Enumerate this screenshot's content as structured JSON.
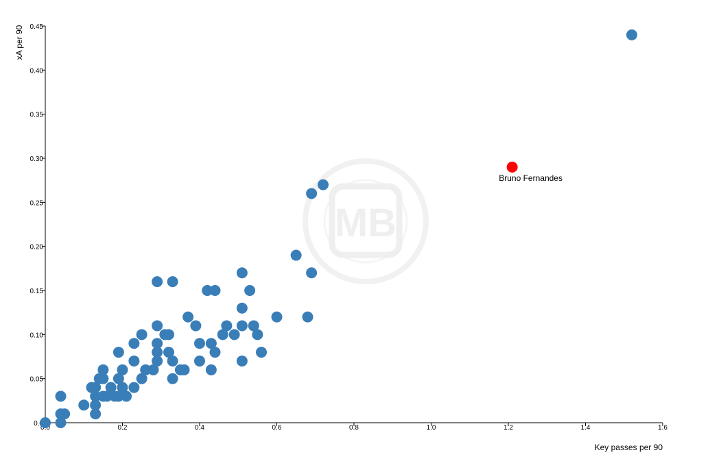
{
  "chart_data": {
    "type": "scatter",
    "xlabel": "Key passes per 90",
    "ylabel": "xA per 90",
    "xlim": [
      0,
      1.6
    ],
    "ylim": [
      0,
      0.45
    ],
    "x_ticks": [
      "0.0",
      "0.2",
      "0.4",
      "0.6",
      "0.8",
      "1.0",
      "1.2",
      "1.4",
      "1.6"
    ],
    "y_ticks": [
      "0.0",
      "0.05",
      "0.10",
      "0.15",
      "0.20",
      "0.25",
      "0.30",
      "0.35",
      "0.40",
      "0.45"
    ],
    "grid": false,
    "watermark": "MB",
    "colors": {
      "points": "#3a7eb8",
      "highlight": "#ff0000",
      "watermark": "#eeeeee"
    },
    "highlight": {
      "label": "Bruno Fernandes",
      "x": 1.21,
      "y": 0.29
    },
    "points": [
      [
        0.0,
        0.0
      ],
      [
        0.04,
        0.0
      ],
      [
        0.04,
        0.01
      ],
      [
        0.05,
        0.01
      ],
      [
        0.04,
        0.03
      ],
      [
        0.1,
        0.02
      ],
      [
        0.12,
        0.04
      ],
      [
        0.13,
        0.01
      ],
      [
        0.13,
        0.02
      ],
      [
        0.13,
        0.03
      ],
      [
        0.13,
        0.04
      ],
      [
        0.14,
        0.05
      ],
      [
        0.15,
        0.03
      ],
      [
        0.15,
        0.05
      ],
      [
        0.15,
        0.06
      ],
      [
        0.16,
        0.03
      ],
      [
        0.17,
        0.04
      ],
      [
        0.18,
        0.03
      ],
      [
        0.19,
        0.03
      ],
      [
        0.19,
        0.05
      ],
      [
        0.19,
        0.08
      ],
      [
        0.2,
        0.04
      ],
      [
        0.2,
        0.06
      ],
      [
        0.21,
        0.03
      ],
      [
        0.23,
        0.04
      ],
      [
        0.23,
        0.07
      ],
      [
        0.23,
        0.09
      ],
      [
        0.25,
        0.05
      ],
      [
        0.25,
        0.1
      ],
      [
        0.26,
        0.06
      ],
      [
        0.28,
        0.06
      ],
      [
        0.29,
        0.07
      ],
      [
        0.29,
        0.08
      ],
      [
        0.29,
        0.09
      ],
      [
        0.29,
        0.11
      ],
      [
        0.29,
        0.16
      ],
      [
        0.31,
        0.1
      ],
      [
        0.32,
        0.08
      ],
      [
        0.32,
        0.1
      ],
      [
        0.33,
        0.05
      ],
      [
        0.33,
        0.07
      ],
      [
        0.33,
        0.16
      ],
      [
        0.35,
        0.06
      ],
      [
        0.36,
        0.06
      ],
      [
        0.37,
        0.12
      ],
      [
        0.39,
        0.11
      ],
      [
        0.4,
        0.07
      ],
      [
        0.4,
        0.09
      ],
      [
        0.42,
        0.15
      ],
      [
        0.43,
        0.06
      ],
      [
        0.43,
        0.09
      ],
      [
        0.44,
        0.08
      ],
      [
        0.44,
        0.15
      ],
      [
        0.46,
        0.1
      ],
      [
        0.47,
        0.11
      ],
      [
        0.49,
        0.1
      ],
      [
        0.51,
        0.07
      ],
      [
        0.51,
        0.11
      ],
      [
        0.51,
        0.13
      ],
      [
        0.51,
        0.17
      ],
      [
        0.53,
        0.15
      ],
      [
        0.54,
        0.11
      ],
      [
        0.55,
        0.1
      ],
      [
        0.56,
        0.08
      ],
      [
        0.6,
        0.12
      ],
      [
        0.65,
        0.19
      ],
      [
        0.68,
        0.12
      ],
      [
        0.69,
        0.17
      ],
      [
        0.69,
        0.26
      ],
      [
        0.72,
        0.27
      ],
      [
        1.52,
        0.44
      ]
    ]
  }
}
